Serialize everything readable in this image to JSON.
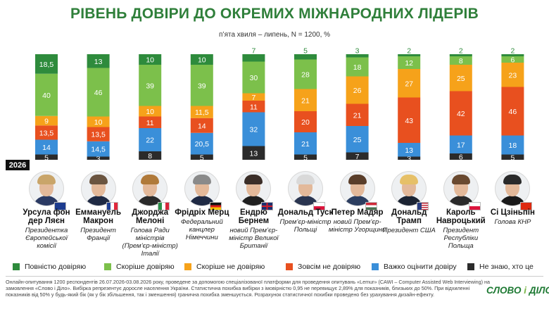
{
  "header": {
    "title": "РІВЕНЬ ДОВІРИ ДО ОКРЕМИХ МІЖНАРОДНИХ ЛІДЕРІВ",
    "subtitle": "п’ята хвиля – липень, N = 1200, %"
  },
  "year_badge": "2026",
  "colors": {
    "full_trust": "#2e8b3c",
    "rather_trust": "#7cc04b",
    "rather_not": "#f6a21a",
    "no_trust": "#e8501f",
    "hard": "#3a8fd9",
    "dont_know": "#2b2b2b",
    "title": "#2f7f3a"
  },
  "chart_data": {
    "type": "bar",
    "stacked": true,
    "categories": [
      "Урсула фон дер Ляєн",
      "Еммануель Макрон",
      "Джорджа Мелоні",
      "Фрідріх Мерц",
      "Ендрю Бернем",
      "Дональд Туск",
      "Петер Мадяр",
      "Дональд Трамп",
      "Кароль Навроцький",
      "Сі Цзіньпін"
    ],
    "series": [
      {
        "name": "Не знаю, хто це",
        "key": "dont_know",
        "labels": [
          "5",
          "3",
          "8",
          "5",
          "13",
          "5",
          "7",
          "3",
          "6",
          "5"
        ],
        "values": [
          5,
          3,
          8,
          5,
          13,
          5,
          7,
          3,
          6,
          5
        ]
      },
      {
        "name": "Важко оцінити довіру",
        "key": "hard",
        "labels": [
          "14",
          "14,5",
          "22",
          "20,5",
          "32",
          "21",
          "25",
          "13",
          "17",
          "18"
        ],
        "values": [
          14,
          14.5,
          22,
          20.5,
          32,
          21,
          25,
          13,
          17,
          18
        ]
      },
      {
        "name": "Зовсім не довіряю",
        "key": "no_trust",
        "labels": [
          "13,5",
          "13,5",
          "11",
          "14",
          "11",
          "20",
          "21",
          "43",
          "42",
          "46"
        ],
        "values": [
          13.5,
          13.5,
          11,
          14,
          11,
          20,
          21,
          43,
          42,
          46
        ]
      },
      {
        "name": "Скоріше не довіряю",
        "key": "rather_not",
        "labels": [
          "9",
          "10",
          "10",
          "11,5",
          "7",
          "21",
          "26",
          "27",
          "25",
          "23"
        ],
        "values": [
          9,
          10,
          10,
          11.5,
          7,
          21,
          26,
          27,
          25,
          23
        ]
      },
      {
        "name": "Скоріше довіряю",
        "key": "rather_trust",
        "labels": [
          "40",
          "46",
          "39",
          "39",
          "30",
          "28",
          "18",
          "12",
          "8",
          "6"
        ],
        "values": [
          40,
          46,
          39,
          39,
          30,
          28,
          18,
          12,
          8,
          6
        ]
      },
      {
        "name": "Повністю довіряю",
        "key": "full_trust",
        "labels": [
          "18,5",
          "13",
          "10",
          "10",
          "7",
          "5",
          "3",
          "2",
          "2",
          "2"
        ],
        "values": [
          18.5,
          13,
          10,
          10,
          7,
          5,
          3,
          2,
          2,
          2
        ]
      }
    ]
  },
  "leaders": [
    {
      "name": "Урсула фон дер Ляєн",
      "role": "Президентка Європейської комісії",
      "flag": "eu"
    },
    {
      "name": "Еммануель Макрон",
      "role": "Президент Франції",
      "flag": "fr"
    },
    {
      "name": "Джорджа Мелоні",
      "role": "Голова Ради міністрів (Прем’єр-міністр) Італії",
      "flag": "it"
    },
    {
      "name": "Фрідріх Мерц",
      "role": "Федеральний канцлер Німеччини",
      "flag": "de"
    },
    {
      "name": "Ендрю Бернем",
      "role": "новий Прем’єр-міністр Великої Британії",
      "flag": "uk"
    },
    {
      "name": "Дональд Туск",
      "role": "Прем’єр-міністр Польщі",
      "flag": "pl"
    },
    {
      "name": "Петер Мадяр",
      "role": "новий Прем’єр-міністр Угорщини",
      "flag": "hu"
    },
    {
      "name": "Дональд Трамп",
      "role": "Президент США",
      "flag": "us"
    },
    {
      "name": "Кароль Навроцький",
      "role": "Президент Республіки Польща",
      "flag": "pl"
    },
    {
      "name": "Сі Цзіньпін",
      "role": "Голова КНР",
      "flag": "cn"
    }
  ],
  "legend": [
    {
      "label": "Повністю довіряю",
      "key": "full_trust"
    },
    {
      "label": "Скоріше довіряю",
      "key": "rather_trust"
    },
    {
      "label": "Скоріше не довіряю",
      "key": "rather_not"
    },
    {
      "label": "Зовсім не довіряю",
      "key": "no_trust"
    },
    {
      "label": "Важко оцінити довіру",
      "key": "hard"
    },
    {
      "label": "Не знаю, хто це",
      "key": "dont_know"
    }
  ],
  "footnote": "Онлайн-опитування 1200 респондентів 26.07.2026-03.08.2026 року, проведене за допомогою спеціалізованої платформи для проведення опитувань «Lemur» (CAWI – Computer Assisted Web Interviewing) на замовлення «Слово і Діло». Вибірка репрезентує доросле населення України. Статистична похибка вибірки з імовірністю 0,95 не перевищує 2,89% для показників, близьких до 50%. При відхиленні показників від 50% у будь-який бік (як у бік збільшення, так і зменшення) гранична похибка зменшується. Розрахунок статистичної похибки проведено без урахування дизайн-ефекту.",
  "logo": {
    "part1": "СЛОВО ",
    "amp": "і",
    "part2": " ДІЛО"
  }
}
